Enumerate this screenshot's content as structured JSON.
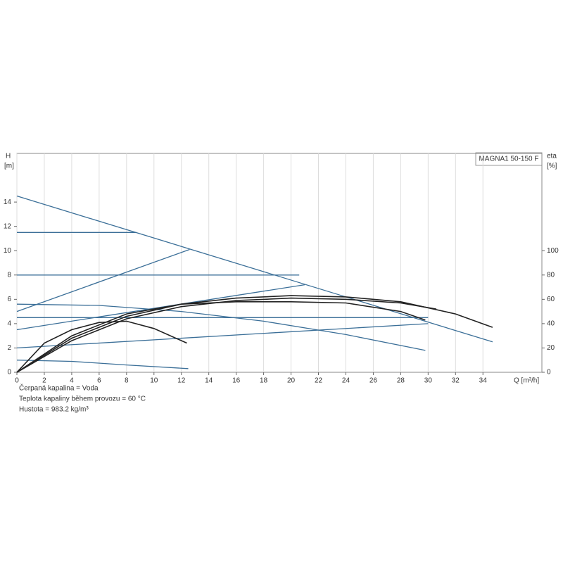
{
  "chart_data": {
    "type": "line",
    "label_box": "MAGNA1 50-150 F",
    "y_label": "H",
    "y_unit": "[m]",
    "y2_label": "eta",
    "y2_unit": "[%]",
    "x_label": "Q [m³/h]",
    "notes": [
      "Čerpaná kapalina = Voda",
      "Teplota kapaliny během provozu = 60 °C",
      "Hustota = 983.2 kg/m³"
    ],
    "xlim": [
      0,
      38.3
    ],
    "ylim": [
      0,
      18
    ],
    "y2lim": [
      0,
      180
    ],
    "xticks": [
      0,
      2,
      4,
      6,
      8,
      10,
      12,
      14,
      16,
      18,
      20,
      22,
      24,
      26,
      28,
      30,
      32,
      34
    ],
    "yticks": [
      0,
      2,
      4,
      6,
      8,
      10,
      12,
      14
    ],
    "y2ticks": [
      0,
      20,
      40,
      60,
      80,
      100
    ],
    "grid": "x",
    "series": [
      {
        "color": "#3b6f98",
        "x": [
          0,
          34.7
        ],
        "values": [
          14.5,
          2.5
        ]
      },
      {
        "color": "#3b6f98",
        "x": [
          0,
          8.7
        ],
        "values": [
          11.5,
          11.5
        ]
      },
      {
        "color": "#3b6f98",
        "x": [
          0,
          20.6
        ],
        "values": [
          8,
          8
        ]
      },
      {
        "color": "#3b6f98",
        "x": [
          0,
          30
        ],
        "values": [
          4.5,
          4.5
        ]
      },
      {
        "color": "#3b6f98",
        "x": [
          0,
          6,
          12,
          18,
          24,
          29.8
        ],
        "values": [
          5.6,
          5.5,
          5,
          4.2,
          3.1,
          1.8
        ]
      },
      {
        "color": "#3b6f98",
        "x": [
          0,
          12.6
        ],
        "values": [
          5,
          10.1
        ]
      },
      {
        "color": "#3b6f98",
        "x": [
          0,
          21
        ],
        "values": [
          3.5,
          7.2
        ]
      },
      {
        "color": "#3b6f98",
        "x": [
          0,
          30
        ],
        "values": [
          2,
          4
        ]
      },
      {
        "color": "#3b6f98",
        "x": [
          0,
          4,
          8,
          12.5
        ],
        "values": [
          1,
          0.9,
          0.6,
          0.3
        ]
      },
      {
        "color": "#222222",
        "axis": "y2",
        "x": [
          0,
          4,
          8,
          12,
          16,
          20,
          24,
          28,
          32,
          34.7
        ],
        "values": [
          0,
          28,
          46,
          56,
          61,
          63,
          62,
          58,
          48,
          37
        ]
      },
      {
        "color": "#222222",
        "axis": "y2",
        "x": [
          0,
          4,
          8,
          12,
          16,
          20,
          24,
          28,
          29.8
        ],
        "values": [
          0,
          30,
          48,
          56,
          58,
          58,
          57,
          50,
          43
        ]
      },
      {
        "color": "#222222",
        "axis": "y2",
        "x": [
          0,
          4,
          8,
          12,
          16,
          20,
          24,
          28,
          30.6
        ],
        "values": [
          0,
          26,
          44,
          54,
          59,
          61,
          60,
          57,
          52
        ]
      },
      {
        "color": "#222222",
        "axis": "y2",
        "x": [
          0,
          2,
          4,
          6,
          8,
          10,
          12.4
        ],
        "values": [
          0,
          24,
          35,
          41,
          42,
          36,
          24
        ]
      }
    ]
  }
}
